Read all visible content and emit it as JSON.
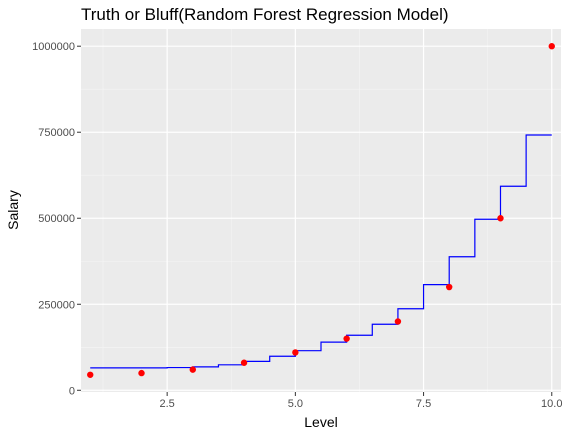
{
  "chart_data": {
    "type": "scatter",
    "title": "Truth or Bluff(Random Forest Regression Model)",
    "xlabel": "Level",
    "ylabel": "Salary",
    "xlim": [
      0.82,
      10.18
    ],
    "ylim": [
      -5000,
      1050000
    ],
    "x_ticks": [
      2.5,
      5.0,
      7.5,
      10.0
    ],
    "x_tick_labels": [
      "2.5",
      "5.0",
      "7.5",
      "10.0"
    ],
    "y_ticks": [
      0,
      250000,
      500000,
      750000,
      1000000
    ],
    "y_tick_labels": [
      "0",
      "250000",
      "500000",
      "750000",
      "1000000"
    ],
    "grid": true,
    "series": [
      {
        "kind": "points",
        "color": "#ff0000",
        "x": [
          1,
          2,
          3,
          4,
          5,
          6,
          7,
          8,
          9,
          10
        ],
        "y": [
          45000,
          50000,
          60000,
          80000,
          110000,
          150000,
          200000,
          300000,
          500000,
          1000000
        ]
      },
      {
        "kind": "step",
        "color": "#0000ff",
        "x": [
          1.0,
          1.5,
          2.5,
          3.0,
          3.5,
          4.0,
          4.5,
          5.0,
          5.5,
          6.0,
          6.5,
          7.0,
          7.5,
          8.0,
          8.5,
          9.0,
          9.5,
          10.0
        ],
        "y": [
          65000,
          65000,
          66000,
          68000,
          74000,
          84000,
          99000,
          115000,
          140000,
          160000,
          192000,
          237000,
          307000,
          388000,
          497000,
          593000,
          742000,
          742000
        ]
      }
    ]
  }
}
